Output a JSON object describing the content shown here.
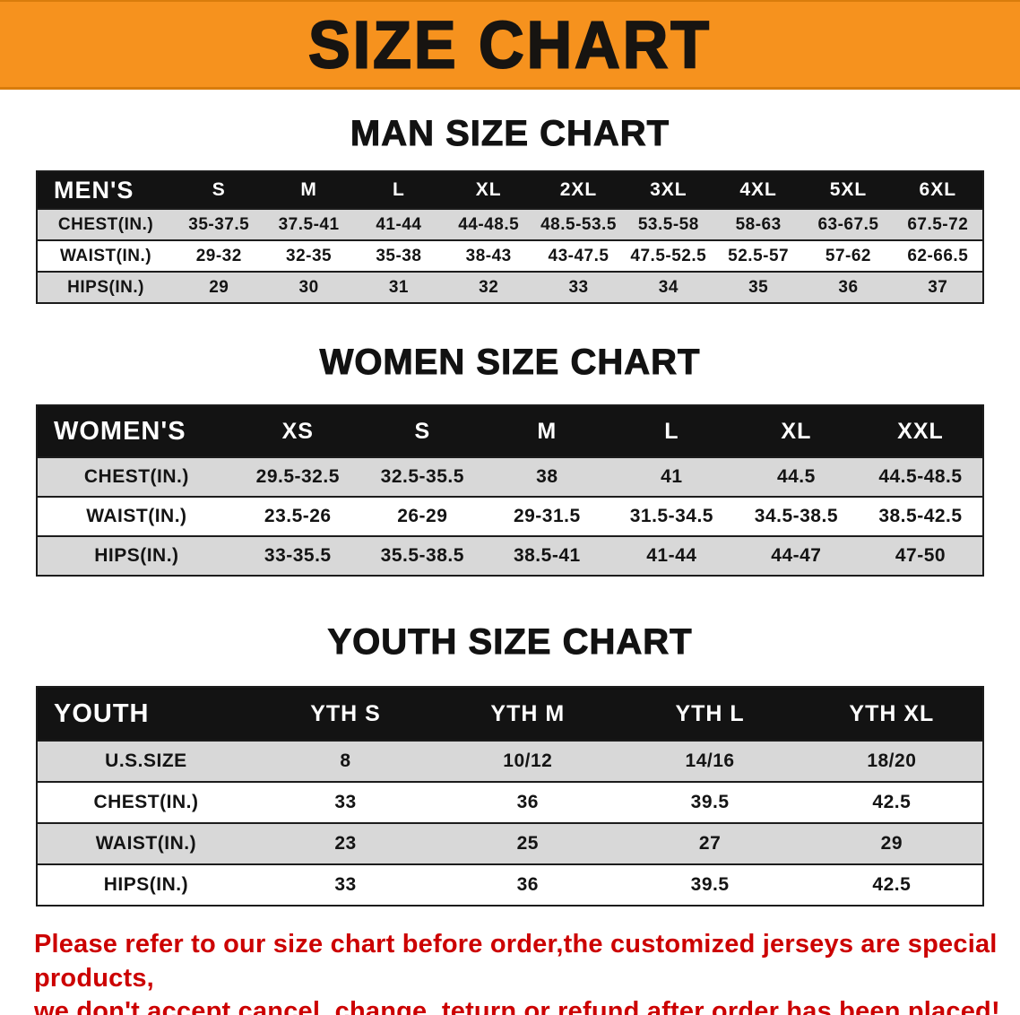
{
  "banner": {
    "title": "SIZE CHART"
  },
  "sections": {
    "men": {
      "heading": "MAN SIZE CHART",
      "table": {
        "header": [
          "MEN'S",
          "S",
          "M",
          "L",
          "XL",
          "2XL",
          "3XL",
          "4XL",
          "5XL",
          "6XL"
        ],
        "rows": [
          [
            "CHEST(IN.)",
            "35-37.5",
            "37.5-41",
            "41-44",
            "44-48.5",
            "48.5-53.5",
            "53.5-58",
            "58-63",
            "63-67.5",
            "67.5-72"
          ],
          [
            "WAIST(IN.)",
            "29-32",
            "32-35",
            "35-38",
            "38-43",
            "43-47.5",
            "47.5-52.5",
            "52.5-57",
            "57-62",
            "62-66.5"
          ],
          [
            "HIPS(IN.)",
            "29",
            "30",
            "31",
            "32",
            "33",
            "34",
            "35",
            "36",
            "37"
          ]
        ]
      }
    },
    "women": {
      "heading": "WOMEN SIZE CHART",
      "table": {
        "header": [
          "WOMEN'S",
          "XS",
          "S",
          "M",
          "L",
          "XL",
          "XXL"
        ],
        "rows": [
          [
            "CHEST(IN.)",
            "29.5-32.5",
            "32.5-35.5",
            "38",
            "41",
            "44.5",
            "44.5-48.5"
          ],
          [
            "WAIST(IN.)",
            "23.5-26",
            "26-29",
            "29-31.5",
            "31.5-34.5",
            "34.5-38.5",
            "38.5-42.5"
          ],
          [
            "HIPS(IN.)",
            "33-35.5",
            "35.5-38.5",
            "38.5-41",
            "41-44",
            "44-47",
            "47-50"
          ]
        ]
      }
    },
    "youth": {
      "heading": "YOUTH SIZE CHART",
      "table": {
        "header": [
          "YOUTH",
          "YTH S",
          "YTH M",
          "YTH L",
          "YTH XL"
        ],
        "rows": [
          [
            "U.S.SIZE",
            "8",
            "10/12",
            "14/16",
            "18/20"
          ],
          [
            "CHEST(IN.)",
            "33",
            "36",
            "39.5",
            "42.5"
          ],
          [
            "WAIST(IN.)",
            "23",
            "25",
            "27",
            "29"
          ],
          [
            "HIPS(IN.)",
            "33",
            "36",
            "39.5",
            "42.5"
          ]
        ]
      }
    }
  },
  "disclaimer": {
    "line1": "Please refer to our size chart before order,the customized jerseys are special products,",
    "line2": "we don't accept cancel, change, teturn or refund after order has been placed!"
  },
  "theme": {
    "banner_bg": "#f6921e",
    "title_color": "#171411",
    "header_bg": "#131313",
    "stripe_bg": "#d8d8d8",
    "border_color": "#1c1c1c",
    "disclaimer_color": "#cc0000"
  }
}
